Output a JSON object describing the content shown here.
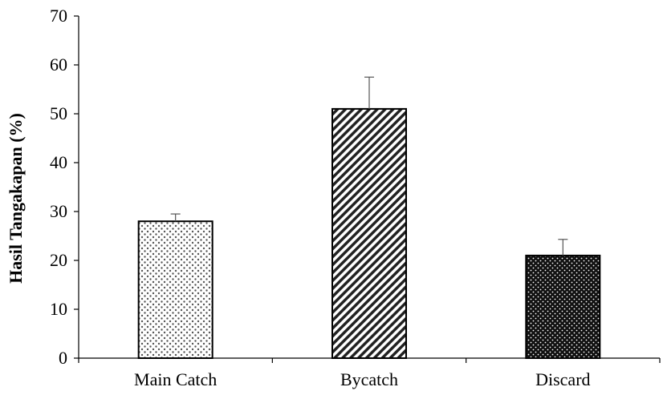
{
  "chart_data": {
    "type": "bar",
    "title": "",
    "xlabel": "",
    "ylabel": "Hasil Tangakapan (%)",
    "categories": [
      "Main Catch",
      "Bycatch",
      "Discard"
    ],
    "values": [
      28,
      51,
      21
    ],
    "error_upper": [
      1.5,
      6.5,
      3.3
    ],
    "ylim": [
      0,
      70
    ],
    "yticks": [
      0,
      10,
      20,
      30,
      40,
      50,
      60,
      70
    ],
    "grid": false,
    "legend": "none",
    "bar_patterns": [
      "light-dots",
      "diagonal-stripes",
      "dark-dots"
    ],
    "colors": {
      "axis": "#000000",
      "bar_stroke": "#000000",
      "error_bar": "#555555"
    }
  }
}
